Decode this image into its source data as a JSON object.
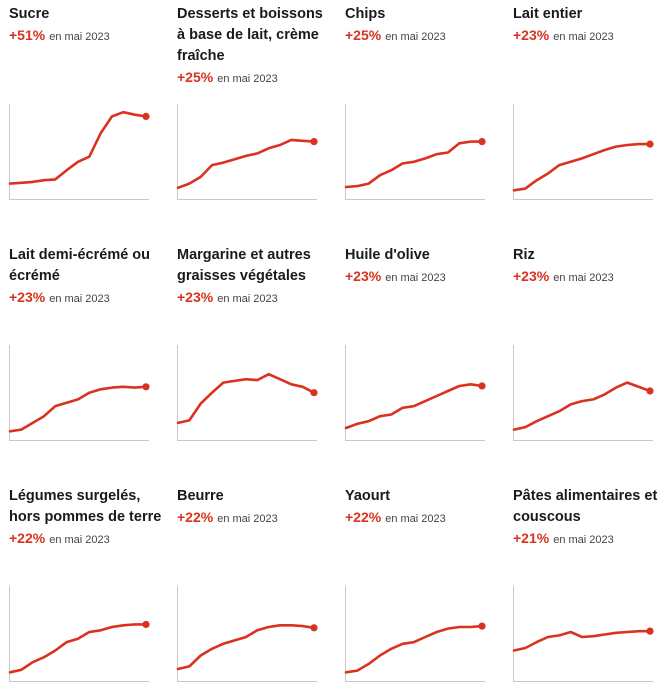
{
  "colors": {
    "line": "#d9321f",
    "axis": "#c8c8c8",
    "text": "#1a1a1a",
    "accent": "#d9321f"
  },
  "chart_data": [
    {
      "type": "line",
      "title": "Sucre",
      "change": "+51%",
      "period": "en mai 2023",
      "values": [
        0.1,
        0.11,
        0.12,
        0.14,
        0.15,
        0.26,
        0.36,
        0.42,
        0.7,
        0.9,
        0.95,
        0.92,
        0.9
      ]
    },
    {
      "type": "line",
      "title": "Desserts et boissons à base de lait, crème fraîche",
      "change": "+25%",
      "period": "en mai 2023",
      "values": [
        0.05,
        0.1,
        0.18,
        0.32,
        0.35,
        0.39,
        0.43,
        0.46,
        0.52,
        0.56,
        0.62,
        0.61,
        0.6
      ]
    },
    {
      "type": "line",
      "title": "Chips",
      "change": "+25%",
      "period": "en mai 2023",
      "values": [
        0.06,
        0.07,
        0.1,
        0.2,
        0.26,
        0.34,
        0.36,
        0.4,
        0.45,
        0.47,
        0.58,
        0.6,
        0.6
      ]
    },
    {
      "type": "line",
      "title": "Lait entier",
      "change": "+23%",
      "period": "en mai 2023",
      "values": [
        0.02,
        0.04,
        0.14,
        0.22,
        0.32,
        0.36,
        0.4,
        0.45,
        0.5,
        0.54,
        0.56,
        0.57,
        0.57
      ]
    },
    {
      "type": "line",
      "title": "Lait demi-écrémé ou écrémé",
      "change": "+23%",
      "period": "en mai 2023",
      "values": [
        0.02,
        0.04,
        0.12,
        0.2,
        0.32,
        0.36,
        0.4,
        0.48,
        0.52,
        0.54,
        0.55,
        0.54,
        0.55
      ]
    },
    {
      "type": "line",
      "title": "Margarine et autres graisses végétales",
      "change": "+23%",
      "period": "en mai 2023",
      "values": [
        0.12,
        0.15,
        0.35,
        0.48,
        0.6,
        0.62,
        0.64,
        0.63,
        0.7,
        0.64,
        0.58,
        0.55,
        0.48
      ]
    },
    {
      "type": "line",
      "title": "Huile d'olive",
      "change": "+23%",
      "period": "en mai 2023",
      "values": [
        0.06,
        0.11,
        0.14,
        0.2,
        0.22,
        0.3,
        0.32,
        0.38,
        0.44,
        0.5,
        0.56,
        0.58,
        0.56
      ]
    },
    {
      "type": "line",
      "title": "Riz",
      "change": "+23%",
      "period": "en mai 2023",
      "values": [
        0.04,
        0.07,
        0.14,
        0.2,
        0.26,
        0.34,
        0.38,
        0.4,
        0.46,
        0.54,
        0.6,
        0.55,
        0.5
      ]
    },
    {
      "type": "line",
      "title": "Légumes surgelés, hors pommes de terre",
      "change": "+22%",
      "period": "en mai 2023",
      "values": [
        0.02,
        0.05,
        0.14,
        0.2,
        0.28,
        0.38,
        0.42,
        0.5,
        0.52,
        0.56,
        0.58,
        0.59,
        0.59
      ]
    },
    {
      "type": "line",
      "title": "Beurre",
      "change": "+22%",
      "period": "en mai 2023",
      "values": [
        0.06,
        0.09,
        0.22,
        0.3,
        0.36,
        0.4,
        0.44,
        0.52,
        0.56,
        0.58,
        0.58,
        0.57,
        0.55
      ]
    },
    {
      "type": "line",
      "title": "Yaourt",
      "change": "+22%",
      "period": "en mai 2023",
      "values": [
        0.02,
        0.04,
        0.12,
        0.22,
        0.3,
        0.36,
        0.38,
        0.44,
        0.5,
        0.54,
        0.56,
        0.56,
        0.57
      ]
    },
    {
      "type": "line",
      "title": "Pâtes alimentaires et couscous",
      "change": "+21%",
      "period": "en mai 2023",
      "values": [
        0.28,
        0.31,
        0.38,
        0.44,
        0.46,
        0.5,
        0.44,
        0.45,
        0.47,
        0.49,
        0.5,
        0.51,
        0.51
      ]
    }
  ]
}
